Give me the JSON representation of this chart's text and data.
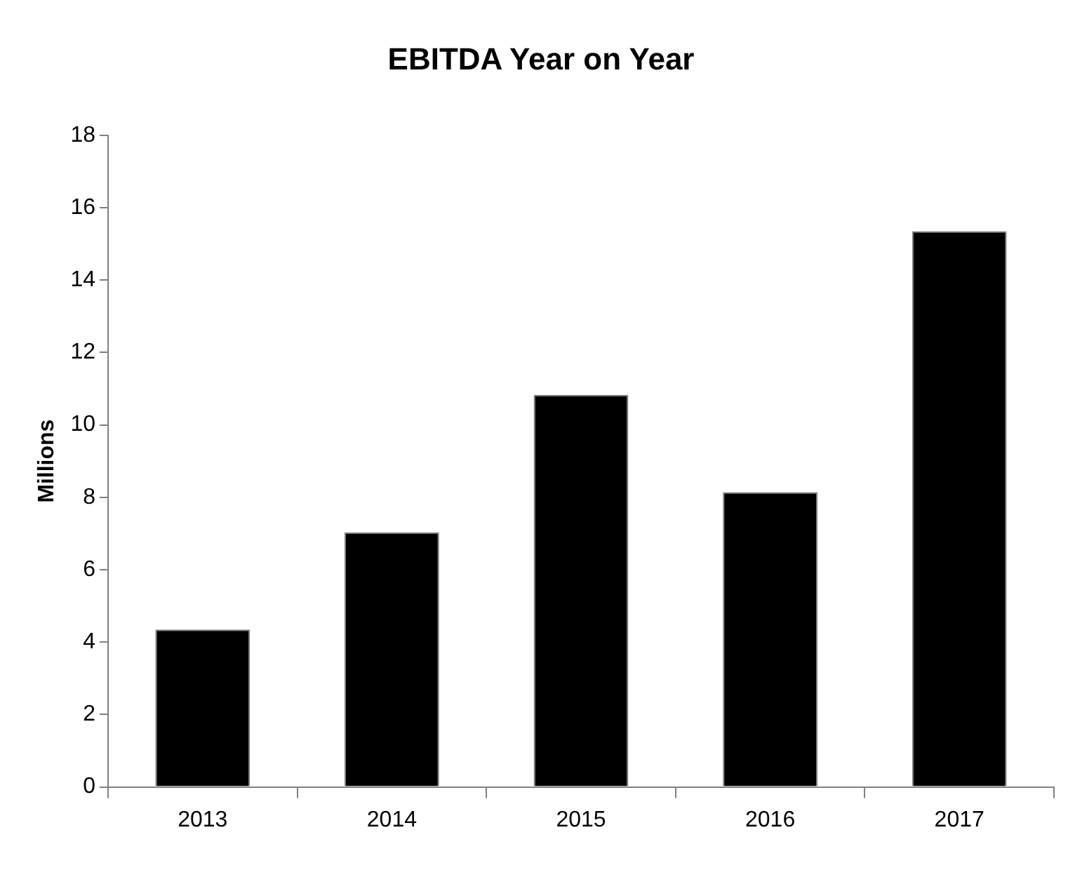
{
  "chart_data": {
    "type": "bar",
    "title": "EBITDA Year on Year",
    "ylabel": "Millions",
    "categories": [
      "2013",
      "2014",
      "2015",
      "2016",
      "2017"
    ],
    "values": [
      4.35,
      7.03,
      10.83,
      8.14,
      15.35
    ],
    "color": "#000000",
    "ylim": [
      0,
      18
    ],
    "yticks": [
      0,
      2,
      4,
      6,
      8,
      10,
      12,
      14,
      16,
      18
    ],
    "grid": false,
    "legend": false
  }
}
